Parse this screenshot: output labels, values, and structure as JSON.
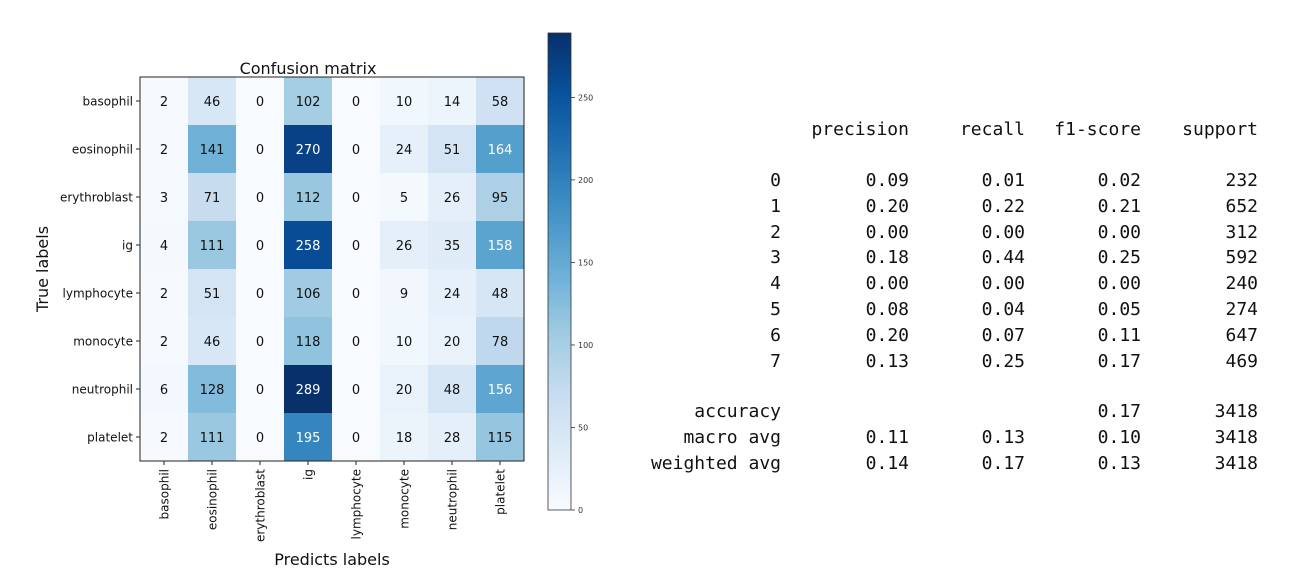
{
  "chart_data": [
    {
      "type": "heatmap",
      "title": "Confusion matrix",
      "xlabel": "Predicts labels",
      "ylabel": "True labels",
      "row_labels": [
        "basophil",
        "eosinophil",
        "erythroblast",
        "ig",
        "lymphocyte",
        "monocyte",
        "neutrophil",
        "platelet"
      ],
      "col_labels": [
        "basophil",
        "eosinophil",
        "erythroblast",
        "ig",
        "lymphocyte",
        "monocyte",
        "neutrophil",
        "platelet"
      ],
      "values": [
        [
          2,
          46,
          0,
          102,
          0,
          10,
          14,
          58
        ],
        [
          2,
          141,
          0,
          270,
          0,
          24,
          51,
          164
        ],
        [
          3,
          71,
          0,
          112,
          0,
          5,
          26,
          95
        ],
        [
          4,
          111,
          0,
          258,
          0,
          26,
          35,
          158
        ],
        [
          2,
          51,
          0,
          106,
          0,
          9,
          24,
          48
        ],
        [
          2,
          46,
          0,
          118,
          0,
          10,
          20,
          78
        ],
        [
          6,
          128,
          0,
          289,
          0,
          20,
          48,
          156
        ],
        [
          2,
          111,
          0,
          195,
          0,
          18,
          28,
          115
        ]
      ],
      "colormap": "Blues",
      "colorbar": {
        "range": [
          0,
          289
        ],
        "ticks": [
          0,
          50,
          100,
          150,
          200,
          250
        ],
        "low_color": "#f7fbff",
        "high_color": "#08306b"
      }
    },
    {
      "type": "table",
      "columns": [
        "precision",
        "recall",
        "f1-score",
        "support"
      ],
      "rows": [
        {
          "label": "0",
          "values": [
            "0.09",
            "0.01",
            "0.02",
            "232"
          ]
        },
        {
          "label": "1",
          "values": [
            "0.20",
            "0.22",
            "0.21",
            "652"
          ]
        },
        {
          "label": "2",
          "values": [
            "0.00",
            "0.00",
            "0.00",
            "312"
          ]
        },
        {
          "label": "3",
          "values": [
            "0.18",
            "0.44",
            "0.25",
            "592"
          ]
        },
        {
          "label": "4",
          "values": [
            "0.00",
            "0.00",
            "0.00",
            "240"
          ]
        },
        {
          "label": "5",
          "values": [
            "0.08",
            "0.04",
            "0.05",
            "274"
          ]
        },
        {
          "label": "6",
          "values": [
            "0.20",
            "0.07",
            "0.11",
            "647"
          ]
        },
        {
          "label": "7",
          "values": [
            "0.13",
            "0.25",
            "0.17",
            "469"
          ]
        }
      ],
      "summary_rows": [
        {
          "label": "accuracy",
          "values": [
            "",
            "",
            "0.17",
            "3418"
          ]
        },
        {
          "label": "macro avg",
          "values": [
            "0.11",
            "0.13",
            "0.10",
            "3418"
          ]
        },
        {
          "label": "weighted avg",
          "values": [
            "0.14",
            "0.17",
            "0.13",
            "3418"
          ]
        }
      ]
    }
  ]
}
